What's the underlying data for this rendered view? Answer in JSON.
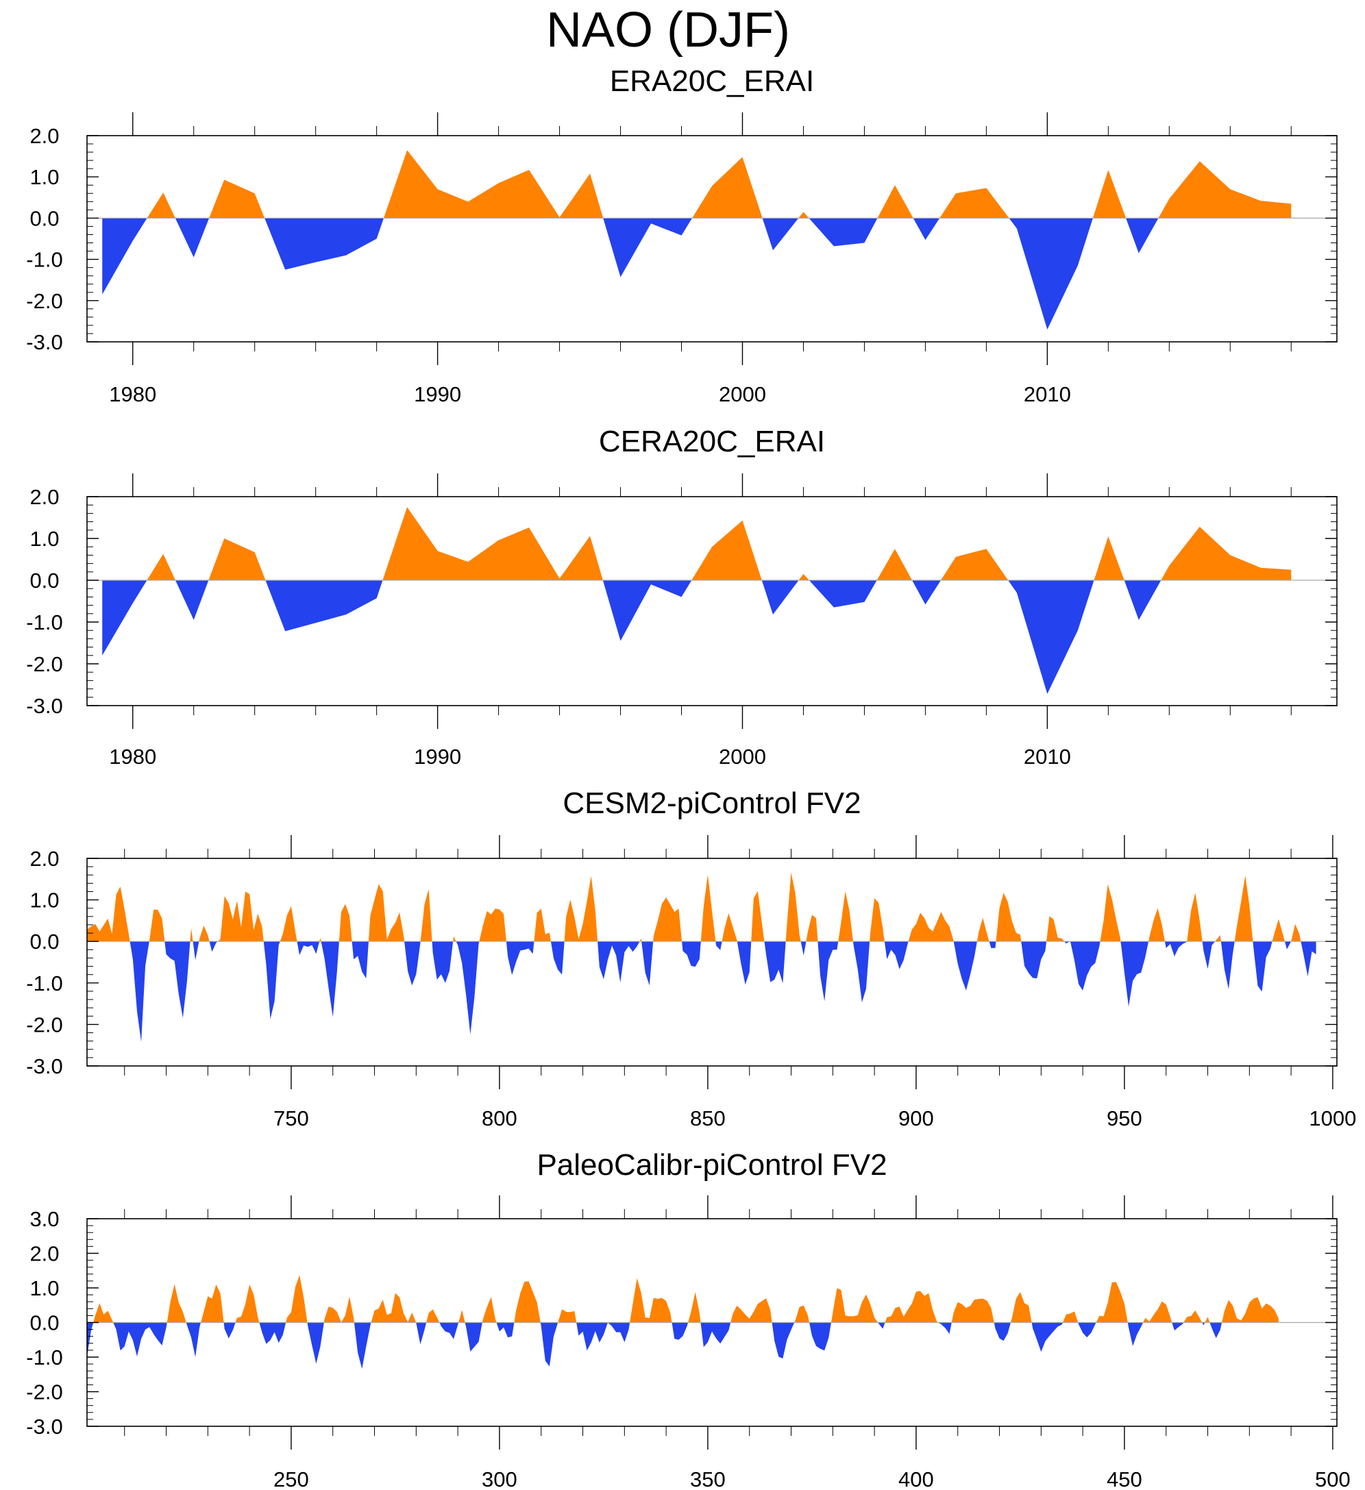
{
  "title": "NAO (DJF)",
  "colors": {
    "positive": "#ff8200",
    "negative": "#2442ee",
    "frame": "#000000",
    "zero_line": "#aaaaaa"
  },
  "chart_data": [
    {
      "type": "area",
      "title": "ERA20C_ERAI",
      "ylim": [
        -3.0,
        2.0
      ],
      "xlim": [
        1978.5,
        2019.5
      ],
      "yticks": [
        -3.0,
        -2.0,
        -1.0,
        0.0,
        1.0,
        2.0
      ],
      "ytick_labels": [
        "-3.0",
        "-2.0",
        "-1.0",
        "0.0",
        "1.0",
        "2.0"
      ],
      "xticks": [
        1980,
        1990,
        2000,
        2010
      ],
      "xtick_labels": [
        "1980",
        "1990",
        "2000",
        "2010"
      ],
      "x_start": 1979,
      "values": [
        -1.85,
        -0.55,
        0.62,
        -0.95,
        0.93,
        0.6,
        -1.25,
        -1.07,
        -0.9,
        -0.5,
        1.65,
        0.7,
        0.4,
        0.85,
        1.17,
        0.02,
        1.08,
        -1.43,
        -0.13,
        -0.42,
        0.78,
        1.48,
        -0.78,
        0.15,
        -0.68,
        -0.6,
        0.8,
        -0.53,
        0.6,
        0.73,
        -0.25,
        -2.7,
        -1.15,
        1.17,
        -0.85,
        0.47,
        1.38,
        0.7,
        0.42,
        0.35
      ]
    },
    {
      "type": "area",
      "title": "CERA20C_ERAI",
      "ylim": [
        -3.0,
        2.0
      ],
      "xlim": [
        1978.5,
        2019.5
      ],
      "yticks": [
        -3.0,
        -2.0,
        -1.0,
        0.0,
        1.0,
        2.0
      ],
      "ytick_labels": [
        "-3.0",
        "-2.0",
        "-1.0",
        "0.0",
        "1.0",
        "2.0"
      ],
      "xticks": [
        1980,
        1990,
        2000,
        2010
      ],
      "xtick_labels": [
        "1980",
        "1990",
        "2000",
        "2010"
      ],
      "x_start": 1979,
      "values": [
        -1.8,
        -0.55,
        0.63,
        -0.95,
        1.0,
        0.67,
        -1.22,
        -1.02,
        -0.82,
        -0.43,
        1.75,
        0.7,
        0.44,
        0.96,
        1.26,
        0.04,
        1.06,
        -1.45,
        -0.1,
        -0.4,
        0.8,
        1.43,
        -0.82,
        0.15,
        -0.65,
        -0.52,
        0.75,
        -0.58,
        0.56,
        0.75,
        -0.3,
        -2.72,
        -1.2,
        1.05,
        -0.95,
        0.35,
        1.28,
        0.6,
        0.3,
        0.25
      ]
    },
    {
      "type": "area",
      "title": "CESM2-piControl FV2",
      "ylim": [
        -3.0,
        2.0
      ],
      "xlim": [
        701,
        1001
      ],
      "yticks": [
        -3.0,
        -2.0,
        -1.0,
        0.0,
        1.0,
        2.0
      ],
      "ytick_labels": [
        "-3.0",
        "-2.0",
        "-1.0",
        "0.0",
        "1.0",
        "2.0"
      ],
      "xticks": [
        750,
        800,
        850,
        900,
        950,
        1000
      ],
      "xtick_labels": [
        "750",
        "800",
        "850",
        "900",
        "950",
        "1000"
      ],
      "x_start": 701,
      "values": [
        0.29,
        0.36,
        0.42,
        0.24,
        0.39,
        0.55,
        0.18,
        1.13,
        1.32,
        0.77,
        0.18,
        -0.43,
        -1.68,
        -2.42,
        -0.58,
        0.04,
        0.77,
        0.76,
        0.55,
        -0.31,
        -0.41,
        -0.47,
        -1.27,
        -1.84,
        -0.96,
        0.32,
        -0.45,
        0.06,
        0.38,
        0.15,
        -0.25,
        -0.03,
        0.05,
        1.09,
        0.92,
        0.53,
        0.98,
        0.34,
        1.2,
        1.14,
        0.27,
        0.67,
        0.36,
        -0.56,
        -1.87,
        -1.44,
        -0.09,
        0.18,
        0.63,
        0.85,
        0.23,
        -0.33,
        -0.1,
        -0.13,
        -0.09,
        -0.3,
        0.09,
        -0.41,
        -1.14,
        -1.82,
        -0.73,
        0.71,
        0.9,
        0.62,
        -0.43,
        -0.35,
        -0.73,
        -0.89,
        0.62,
        1.01,
        1.38,
        1.21,
        0.04,
        0.3,
        0.45,
        0.7,
        0.14,
        -0.72,
        -1.06,
        -0.79,
        -0.04,
        0.89,
        1.26,
        -0.27,
        -0.92,
        -0.79,
        -1.0,
        -0.71,
        0.12,
        -0.09,
        -0.52,
        -1.31,
        -2.24,
        -1.33,
        -0.06,
        0.37,
        0.73,
        0.65,
        0.79,
        0.77,
        0.66,
        -0.37,
        -0.81,
        -0.49,
        -0.22,
        -0.2,
        -0.17,
        -0.3,
        0.69,
        0.79,
        0.17,
        0.21,
        -0.41,
        -0.68,
        -0.8,
        0.59,
        1.01,
        0.58,
        0.05,
        0.42,
        0.97,
        1.58,
        0.74,
        -0.62,
        -0.91,
        -0.44,
        -0.1,
        -0.34,
        -0.99,
        -0.26,
        -0.11,
        -0.25,
        -0.12,
        0.07,
        -0.76,
        -1.06,
        0.14,
        0.5,
        0.91,
        1.06,
        0.89,
        0.71,
        0.79,
        -0.23,
        -0.32,
        -0.59,
        -0.61,
        -0.43,
        0.84,
        1.61,
        0.74,
        -0.1,
        -0.21,
        0.31,
        0.68,
        0.35,
        0.03,
        -0.55,
        -1.04,
        -0.74,
        1.04,
        1.21,
        0.43,
        -0.32,
        -0.98,
        -0.92,
        -0.68,
        -1.01,
        0.41,
        1.66,
        1.16,
        0.16,
        -0.34,
        0.23,
        0.64,
        0.56,
        -0.83,
        -1.44,
        -0.45,
        -0.2,
        -0.2,
        0.46,
        1.21,
        0.73,
        -0.1,
        -0.68,
        -1.47,
        -1.14,
        0.2,
        1.04,
        0.93,
        0.32,
        -0.43,
        -0.2,
        -0.33,
        -0.67,
        -0.45,
        -0.05,
        0.29,
        0.42,
        0.69,
        0.56,
        0.33,
        0.24,
        0.47,
        0.71,
        0.5,
        0.36,
        0.01,
        -0.54,
        -0.91,
        -1.18,
        -0.8,
        -0.36,
        0.21,
        0.57,
        0.19,
        -0.16,
        -0.16,
        0.8,
        1.17,
        0.95,
        0.49,
        0.21,
        0.16,
        -0.59,
        -0.76,
        -0.88,
        -0.89,
        -0.43,
        -0.23,
        0.61,
        0.53,
        0.09,
        0.07,
        -0.05,
        0.01,
        -0.46,
        -1.03,
        -1.18,
        -0.82,
        -0.61,
        -0.52,
        -0.11,
        0.5,
        1.38,
        1.02,
        0.53,
        0.08,
        -0.75,
        -1.57,
        -0.95,
        -0.79,
        -0.75,
        -0.38,
        0.11,
        0.51,
        0.8,
        0.4,
        -0.16,
        -0.06,
        -0.36,
        -0.15,
        -0.06,
        -0.01,
        0.75,
        1.17,
        0.55,
        -0.23,
        -0.66,
        -0.09,
        0.03,
        0.15,
        -0.67,
        -1.15,
        -0.3,
        0.37,
        0.96,
        1.59,
        0.87,
        -0.17,
        -1.07,
        -1.21,
        -0.38,
        -0.18,
        0.2,
        0.54,
        0.18,
        -0.19,
        0.0,
        0.42,
        0.17,
        -0.32,
        -0.84,
        -0.24,
        -0.31
      ]
    },
    {
      "type": "area",
      "title": "PaleoCalibr-piControl FV2",
      "ylim": [
        -3.0,
        3.0
      ],
      "xlim": [
        201,
        501
      ],
      "yticks": [
        -3.0,
        -2.0,
        -1.0,
        0.0,
        1.0,
        2.0,
        3.0
      ],
      "ytick_labels": [
        "-3.0",
        "-2.0",
        "-1.0",
        "0.0",
        "1.0",
        "2.0",
        "3.0"
      ],
      "xticks": [
        250,
        300,
        350,
        400,
        450,
        500
      ],
      "xtick_labels": [
        "250",
        "300",
        "350",
        "400",
        "450",
        "500"
      ],
      "x_start": 201,
      "values": [
        -0.98,
        -0.22,
        0.21,
        0.56,
        0.23,
        0.34,
        0.08,
        -0.2,
        -0.81,
        -0.69,
        -0.26,
        -0.51,
        -0.98,
        -0.47,
        -0.2,
        -0.13,
        -0.34,
        -0.51,
        -0.66,
        -0.15,
        0.6,
        1.11,
        0.58,
        0.31,
        -0.08,
        -0.43,
        -1.0,
        -0.14,
        0.31,
        0.76,
        0.69,
        1.1,
        0.84,
        -0.18,
        -0.46,
        -0.22,
        0.13,
        0.17,
        0.53,
        1.1,
        0.81,
        0.15,
        -0.28,
        -0.62,
        -0.51,
        -0.28,
        -0.59,
        -0.36,
        0.14,
        0.3,
        1.03,
        1.37,
        0.73,
        -0.1,
        -0.66,
        -1.19,
        -0.69,
        0.1,
        0.46,
        0.42,
        0.31,
        0.0,
        0.21,
        0.75,
        0.13,
        -0.88,
        -1.34,
        -0.69,
        -0.08,
        0.35,
        0.4,
        0.66,
        0.22,
        0.27,
        0.85,
        0.73,
        0.26,
        0.01,
        0.29,
        -0.01,
        -0.63,
        -0.21,
        0.27,
        0.38,
        0.15,
        -0.11,
        -0.26,
        -0.3,
        -0.48,
        -0.07,
        0.36,
        -0.14,
        -0.84,
        -0.7,
        -0.56,
        0.08,
        0.45,
        0.74,
        0.1,
        -0.26,
        -0.14,
        -0.43,
        -0.4,
        0.36,
        0.85,
        1.18,
        1.19,
        0.89,
        0.58,
        -0.11,
        -1.11,
        -1.27,
        -0.4,
        -0.01,
        0.38,
        0.31,
        0.3,
        0.33,
        -0.38,
        -0.26,
        -0.81,
        -0.58,
        -0.25,
        -0.58,
        -0.35,
        0.0,
        -0.11,
        -0.28,
        -0.28,
        -0.57,
        -0.21,
        0.54,
        1.28,
        0.86,
        0.14,
        0.13,
        0.71,
        0.68,
        0.71,
        0.62,
        0.28,
        -0.47,
        -0.5,
        -0.39,
        -0.11,
        0.32,
        0.88,
        0.28,
        -0.71,
        -0.57,
        -0.26,
        -0.46,
        -0.61,
        -0.42,
        -0.23,
        0.25,
        0.49,
        0.37,
        0.23,
        0.11,
        0.31,
        0.54,
        0.62,
        0.7,
        0.37,
        -0.53,
        -0.99,
        -1.04,
        -0.5,
        -0.21,
        0.06,
        0.45,
        0.49,
        0.21,
        -0.38,
        -0.68,
        -0.76,
        -0.81,
        -0.44,
        0.28,
        0.99,
        0.94,
        0.2,
        0.18,
        0.18,
        0.21,
        0.59,
        0.81,
        0.53,
        0.14,
        -0.03,
        -0.18,
        0.15,
        0.18,
        0.42,
        0.46,
        0.17,
        0.37,
        0.55,
        0.89,
        0.91,
        0.77,
        0.85,
        0.36,
        0.02,
        -0.05,
        -0.16,
        -0.33,
        0.29,
        0.59,
        0.53,
        0.42,
        0.48,
        0.66,
        0.68,
        0.69,
        0.63,
        0.42,
        -0.17,
        -0.46,
        -0.53,
        -0.31,
        0.13,
        0.69,
        0.88,
        0.56,
        0.49,
        -0.17,
        -0.5,
        -0.85,
        -0.54,
        -0.39,
        -0.25,
        -0.12,
        -0.06,
        0.23,
        0.26,
        0.32,
        -0.05,
        -0.3,
        -0.43,
        -0.3,
        -0.05,
        0.19,
        0.18,
        0.57,
        1.16,
        1.17,
        0.89,
        0.54,
        -0.14,
        -0.68,
        -0.35,
        -0.12,
        0.13,
        0.03,
        0.22,
        0.38,
        0.61,
        0.52,
        0.16,
        -0.23,
        -0.13,
        -0.04,
        0.16,
        0.19,
        0.35,
        0.14,
        -0.08,
        0.16,
        -0.17,
        -0.45,
        -0.21,
        0.33,
        0.65,
        0.49,
        0.12,
        0.06,
        0.26,
        0.58,
        0.69,
        0.73,
        0.4,
        0.55,
        0.49,
        0.37,
        0.12
      ]
    }
  ]
}
